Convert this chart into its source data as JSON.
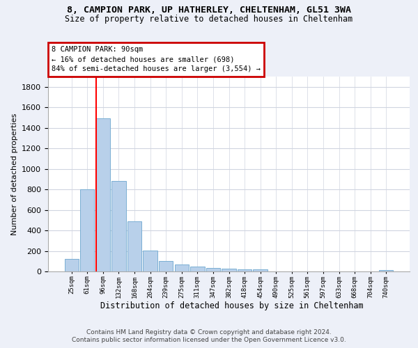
{
  "title1": "8, CAMPION PARK, UP HATHERLEY, CHELTENHAM, GL51 3WA",
  "title2": "Size of property relative to detached houses in Cheltenham",
  "xlabel": "Distribution of detached houses by size in Cheltenham",
  "ylabel": "Number of detached properties",
  "categories": [
    "25sqm",
    "61sqm",
    "96sqm",
    "132sqm",
    "168sqm",
    "204sqm",
    "239sqm",
    "275sqm",
    "311sqm",
    "347sqm",
    "382sqm",
    "418sqm",
    "454sqm",
    "490sqm",
    "525sqm",
    "561sqm",
    "597sqm",
    "633sqm",
    "668sqm",
    "704sqm",
    "740sqm"
  ],
  "values": [
    125,
    800,
    1490,
    880,
    490,
    205,
    105,
    65,
    45,
    35,
    30,
    22,
    18,
    0,
    0,
    0,
    0,
    0,
    0,
    0,
    15
  ],
  "bar_color": "#b8d0ea",
  "bar_edge_color": "#7aafd4",
  "property_bar_index": 2,
  "annotation_line1": "8 CAMPION PARK: 90sqm",
  "annotation_line2": "← 16% of detached houses are smaller (698)",
  "annotation_line3": "84% of semi-detached houses are larger (3,554) →",
  "annotation_box_edgecolor": "#cc0000",
  "ylim": [
    0,
    1900
  ],
  "yticks": [
    0,
    200,
    400,
    600,
    800,
    1000,
    1200,
    1400,
    1600,
    1800
  ],
  "footer1": "Contains HM Land Registry data © Crown copyright and database right 2024.",
  "footer2": "Contains public sector information licensed under the Open Government Licence v3.0.",
  "bg_color": "#edf0f8",
  "plot_bg_color": "#ffffff",
  "grid_color": "#d0d5e0"
}
